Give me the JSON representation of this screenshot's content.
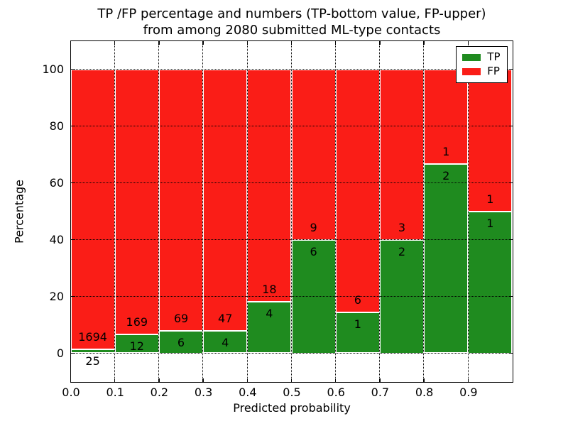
{
  "chart_data": {
    "type": "bar",
    "stacked": true,
    "title_line1": "TP /FP percentage and numbers (TP-bottom value, FP-upper)",
    "title_line2": "from among 2080 submitted ML-type contacts",
    "xlabel": "Predicted probability",
    "ylabel": "Percentage",
    "xlim": [
      0.0,
      1.0
    ],
    "ylim": [
      -10,
      110
    ],
    "grid": true,
    "legend_position": "upper right",
    "y_ticks": [
      0,
      20,
      40,
      60,
      80,
      100
    ],
    "x_tick_values": [
      0.0,
      0.1,
      0.2,
      0.3,
      0.4,
      0.5,
      0.6,
      0.7,
      0.8,
      0.9
    ],
    "x_tick_labels": [
      "0.0",
      "0.1",
      "0.2",
      "0.3",
      "0.4",
      "0.5",
      "0.6",
      "0.7",
      "0.8",
      "0.9"
    ],
    "bin_width": 0.1,
    "bins": [
      {
        "x_start": 0.0,
        "tp": 25,
        "fp": 1694
      },
      {
        "x_start": 0.1,
        "tp": 12,
        "fp": 169
      },
      {
        "x_start": 0.2,
        "tp": 6,
        "fp": 69
      },
      {
        "x_start": 0.3,
        "tp": 4,
        "fp": 47
      },
      {
        "x_start": 0.4,
        "tp": 4,
        "fp": 18
      },
      {
        "x_start": 0.5,
        "tp": 6,
        "fp": 9
      },
      {
        "x_start": 0.6,
        "tp": 1,
        "fp": 6
      },
      {
        "x_start": 0.7,
        "tp": 2,
        "fp": 3
      },
      {
        "x_start": 0.8,
        "tp": 2,
        "fp": 1
      },
      {
        "x_start": 0.9,
        "tp": 1,
        "fp": 1
      }
    ],
    "legend": {
      "items": [
        {
          "label": "TP",
          "color": "#1f8b1f"
        },
        {
          "label": "FP",
          "color": "#fa1d17"
        }
      ]
    },
    "colors": {
      "tp": "#1f8b1f",
      "fp": "#fa1d17",
      "grid": "#000000",
      "text": "#000000",
      "background": "#ffffff",
      "bar_edge": "#ffffff"
    }
  }
}
